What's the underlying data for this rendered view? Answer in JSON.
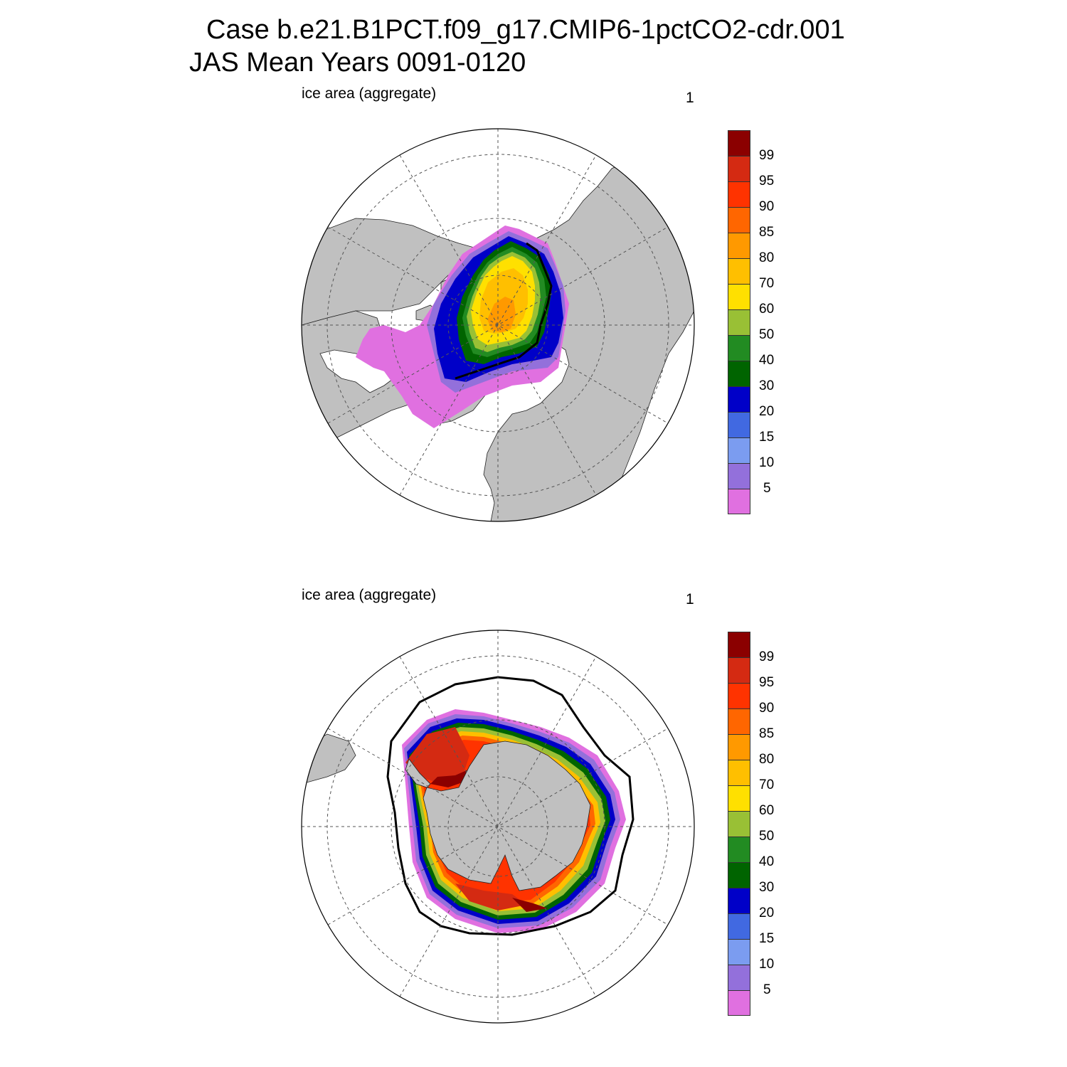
{
  "figure": {
    "title_line1": "Case b.e21.B1PCT.f09_g17.CMIP6-1pctCO2-cdr.001",
    "title_line2": "JAS Mean   Years 0091-0120"
  },
  "panels": [
    {
      "id": "north",
      "label": "ice area  (aggregate)",
      "unit": "1",
      "hemisphere": "Northern"
    },
    {
      "id": "south",
      "label": "ice area  (aggregate)",
      "unit": "1",
      "hemisphere": "Southern"
    }
  ],
  "colorbar": {
    "tick_labels": [
      "99",
      "95",
      "90",
      "85",
      "80",
      "70",
      "60",
      "50",
      "40",
      "30",
      "20",
      "15",
      "10",
      "5"
    ],
    "colors_top_to_bottom": [
      "#8b0000",
      "#d42a12",
      "#ff3300",
      "#ff6600",
      "#ff9900",
      "#ffbf00",
      "#ffe000",
      "#99c035",
      "#228b22",
      "#006400",
      "#0000c8",
      "#4169e1",
      "#7b9cf0",
      "#9370db",
      "#e070e0"
    ]
  },
  "colors": {
    "land": "#c0c0c0",
    "ocean": "#ffffff",
    "grid": "#555555",
    "contour": "#000000"
  },
  "chart_data": [
    {
      "type": "heatmap",
      "title": "ice area  (aggregate)",
      "units": "1",
      "projection": "north polar stereographic",
      "contour_levels": [
        5,
        10,
        15,
        20,
        30,
        40,
        50,
        60,
        70,
        80,
        85,
        90,
        95,
        99
      ],
      "max_concentration_range": [
        80,
        85
      ]
    },
    {
      "type": "heatmap",
      "title": "ice area  (aggregate)",
      "units": "1",
      "projection": "south polar stereographic",
      "contour_levels": [
        5,
        10,
        15,
        20,
        30,
        40,
        50,
        60,
        70,
        80,
        85,
        90,
        95,
        99
      ],
      "max_concentration_range": [
        95,
        100
      ]
    }
  ]
}
